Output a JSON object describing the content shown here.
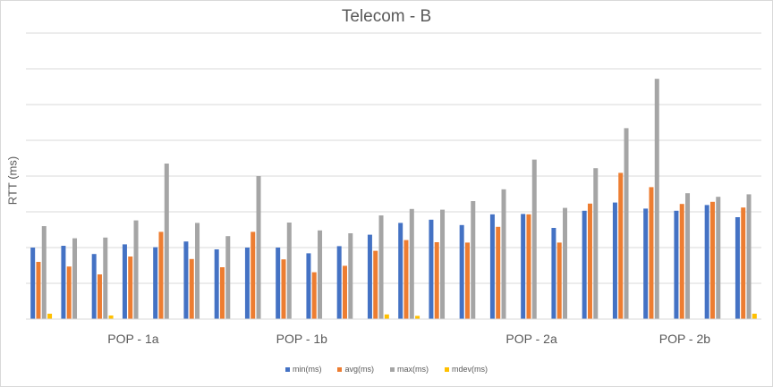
{
  "chart_data": {
    "type": "bar",
    "title": "Telecom - B",
    "ylabel": "RTT (ms)",
    "xlabel": "",
    "ylim": [
      0,
      80
    ],
    "grid": true,
    "legend_position": "bottom",
    "groups": [
      "POP - 1a",
      "POP - 1b",
      "POP - 2a",
      "POP - 2b"
    ],
    "group_label_bar_index": [
      3,
      8.5,
      16,
      21
    ],
    "series": [
      {
        "name": "min(ms)",
        "color": "#4472c4",
        "values": [
          20.0,
          20.5,
          18.2,
          20.9,
          20.1,
          21.7,
          19.5,
          20.0,
          20.0,
          18.4,
          20.4,
          23.6,
          26.9,
          27.8,
          26.3,
          29.3,
          29.4,
          25.5,
          30.3,
          32.6,
          30.9,
          30.3,
          31.9,
          28.5
        ]
      },
      {
        "name": "avg(ms)",
        "color": "#ed7d31",
        "values": [
          16.0,
          14.7,
          12.5,
          17.5,
          24.4,
          16.8,
          14.5,
          24.4,
          16.7,
          13.1,
          14.9,
          19.1,
          22.1,
          21.5,
          21.4,
          25.8,
          29.3,
          21.4,
          32.3,
          40.9,
          36.9,
          32.2,
          32.8,
          31.2
        ]
      },
      {
        "name": "max(ms)",
        "color": "#a5a5a5",
        "values": [
          26.0,
          22.6,
          22.8,
          27.6,
          43.5,
          26.9,
          23.2,
          40.0,
          27.0,
          24.8,
          24.0,
          29.0,
          30.8,
          30.6,
          33.0,
          36.3,
          44.6,
          31.1,
          42.2,
          53.4,
          67.2,
          35.2,
          34.2,
          34.9
        ]
      },
      {
        "name": "mdev(ms)",
        "color": "#ffc000",
        "values": [
          1.5,
          0,
          1.0,
          0,
          0,
          0,
          0,
          0,
          0,
          0,
          0,
          1.3,
          0.9,
          0,
          0,
          0,
          0,
          0,
          0,
          0,
          0,
          0,
          0,
          1.5
        ]
      }
    ]
  }
}
